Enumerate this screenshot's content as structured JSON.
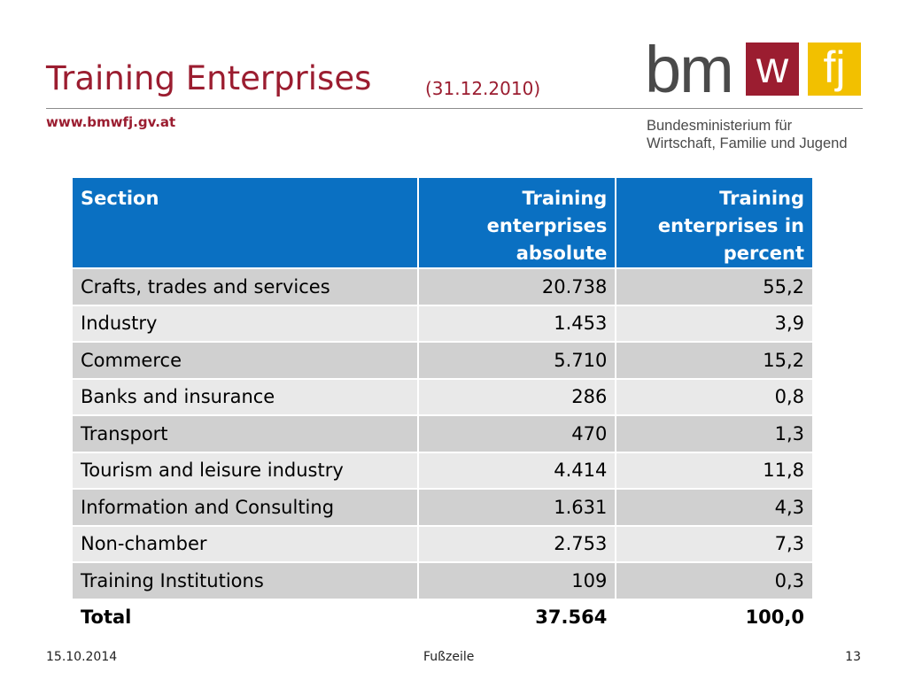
{
  "slide": {
    "title": "Training Enterprises",
    "title_date": "(31.12.2010)",
    "website": "www.bmwfj.gv.at"
  },
  "logo": {
    "bm": "bm",
    "w": "w",
    "fj": "fj",
    "line1": "Bundesministerium für",
    "line2": "Wirtschaft, Familie und Jugend"
  },
  "table": {
    "headers": {
      "section": "Section",
      "absolute": "Training enterprises absolute",
      "percent": "Training enterprises in percent"
    },
    "rows": [
      {
        "section": "Crafts, trades and services",
        "absolute": "20.738",
        "percent": "55,2"
      },
      {
        "section": "Industry",
        "absolute": "1.453",
        "percent": "3,9"
      },
      {
        "section": "Commerce",
        "absolute": "5.710",
        "percent": "15,2"
      },
      {
        "section": "Banks and insurance",
        "absolute": "286",
        "percent": "0,8"
      },
      {
        "section": "Transport",
        "absolute": "470",
        "percent": "1,3"
      },
      {
        "section": "Tourism and leisure industry",
        "absolute": "4.414",
        "percent": "11,8"
      },
      {
        "section": "Information and Consulting",
        "absolute": "1.631",
        "percent": "4,3"
      },
      {
        "section": "Non-chamber",
        "absolute": "2.753",
        "percent": "7,3"
      },
      {
        "section": "Training Institutions",
        "absolute": "109",
        "percent": "0,3"
      }
    ],
    "total": {
      "section": "Total",
      "absolute": "37.564",
      "percent": "100,0"
    }
  },
  "footer": {
    "date": "15.10.2014",
    "text": "Fußzeile",
    "page": "13"
  },
  "colors": {
    "title": "#9b1d30",
    "header_bg": "#0a70c2",
    "logo_w_bg": "#9b1d30",
    "logo_fj_bg": "#f2c000"
  }
}
